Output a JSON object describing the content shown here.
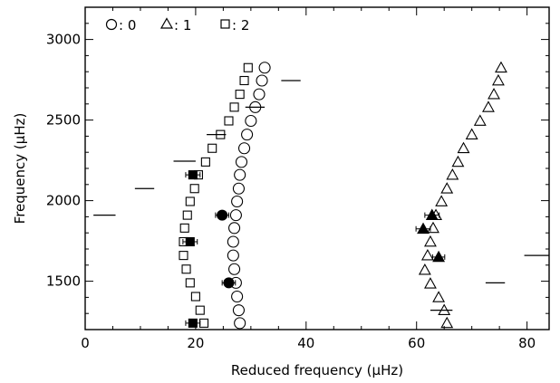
{
  "chart_data": {
    "type": "scatter",
    "title": "",
    "xlabel": "Reduced frequency (μHz)",
    "ylabel": "Frequency (μHz)",
    "xlim": [
      0,
      84
    ],
    "ylim": [
      1200,
      3200
    ],
    "xticks": [
      0,
      20,
      40,
      60,
      80
    ],
    "yticks": [
      1500,
      2000,
      2500,
      3000
    ],
    "xtick_labels": [
      "0",
      "20",
      "40",
      "60",
      "80"
    ],
    "ytick_labels": [
      "1500",
      "2000",
      "2500",
      "3000"
    ],
    "grid": false,
    "legend_position": "top-left",
    "legend": [
      {
        "marker": "circle",
        "label": ": 0"
      },
      {
        "marker": "triangle",
        "label": ": 1"
      },
      {
        "marker": "square",
        "label": ": 2"
      }
    ],
    "series": [
      {
        "marker": "circle",
        "filled": false,
        "points": [
          [
            28.0,
            1240
          ],
          [
            27.8,
            1320
          ],
          [
            27.5,
            1405
          ],
          [
            27.3,
            1490
          ],
          [
            27.0,
            1575
          ],
          [
            26.8,
            1660
          ],
          [
            26.8,
            1745
          ],
          [
            27.0,
            1830
          ],
          [
            27.3,
            1910
          ],
          [
            27.5,
            1995
          ],
          [
            27.8,
            2075
          ],
          [
            28.0,
            2160
          ],
          [
            28.3,
            2240
          ],
          [
            28.8,
            2325
          ],
          [
            29.3,
            2410
          ],
          [
            30.0,
            2495
          ],
          [
            30.8,
            2580
          ],
          [
            31.5,
            2660
          ],
          [
            32.0,
            2745
          ],
          [
            32.5,
            2825
          ]
        ]
      },
      {
        "marker": "triangle",
        "filled": false,
        "points": [
          [
            65.5,
            1240
          ],
          [
            65.0,
            1320
          ],
          [
            64.0,
            1400
          ],
          [
            62.5,
            1485
          ],
          [
            61.5,
            1570
          ],
          [
            62.0,
            1660
          ],
          [
            62.5,
            1745
          ],
          [
            63.0,
            1830
          ],
          [
            63.5,
            1910
          ],
          [
            64.5,
            1995
          ],
          [
            65.5,
            2075
          ],
          [
            66.5,
            2160
          ],
          [
            67.5,
            2240
          ],
          [
            68.5,
            2325
          ],
          [
            70.0,
            2410
          ],
          [
            71.5,
            2495
          ],
          [
            73.0,
            2580
          ],
          [
            74.0,
            2660
          ],
          [
            74.8,
            2745
          ],
          [
            75.3,
            2825
          ]
        ]
      },
      {
        "marker": "square",
        "filled": false,
        "points": [
          [
            21.5,
            1240
          ],
          [
            20.8,
            1320
          ],
          [
            20.0,
            1405
          ],
          [
            19.0,
            1490
          ],
          [
            18.3,
            1575
          ],
          [
            17.8,
            1660
          ],
          [
            17.8,
            1745
          ],
          [
            18.0,
            1830
          ],
          [
            18.5,
            1910
          ],
          [
            19.0,
            1995
          ],
          [
            19.8,
            2075
          ],
          [
            20.5,
            2160
          ],
          [
            21.8,
            2240
          ],
          [
            23.0,
            2325
          ],
          [
            24.5,
            2410
          ],
          [
            26.0,
            2495
          ],
          [
            27.0,
            2580
          ],
          [
            28.0,
            2660
          ],
          [
            28.8,
            2745
          ],
          [
            29.5,
            2825
          ]
        ]
      },
      {
        "marker": "circle",
        "filled": true,
        "points": [
          [
            24.8,
            1910,
            1.2
          ],
          [
            26.0,
            1490,
            1.2
          ]
        ]
      },
      {
        "marker": "triangle",
        "filled": true,
        "points": [
          [
            61.2,
            1825,
            1.3
          ],
          [
            62.8,
            1910,
            1.3
          ],
          [
            64.0,
            1650,
            1.1
          ]
        ]
      },
      {
        "marker": "square",
        "filled": true,
        "points": [
          [
            19.5,
            2160,
            1.3
          ],
          [
            19.0,
            1745,
            1.3
          ],
          [
            19.5,
            1240,
            1.3
          ]
        ]
      }
    ],
    "horizontal_segments": [
      [
        1.5,
        5.5,
        1910
      ],
      [
        9.0,
        12.5,
        2075
      ],
      [
        16.0,
        20.0,
        2245
      ],
      [
        22.0,
        25.5,
        2410
      ],
      [
        29.0,
        32.5,
        2580
      ],
      [
        35.5,
        39.0,
        2745
      ],
      [
        62.5,
        66.5,
        1320
      ],
      [
        72.5,
        76.0,
        1490
      ],
      [
        79.5,
        84.0,
        1660
      ]
    ]
  }
}
